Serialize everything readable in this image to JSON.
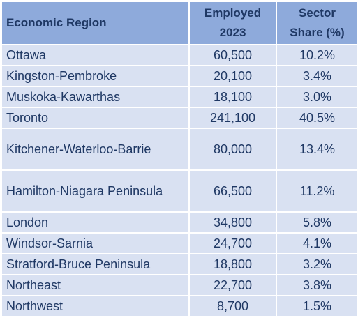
{
  "table": {
    "headers": {
      "region": "Economic Region",
      "employed_line1": "Employed",
      "employed_line2": "2023",
      "share_line1": "Sector",
      "share_line2": "Share (%)"
    },
    "rows": [
      {
        "region": "Ottawa",
        "employed": "60,500",
        "share": "10.2%"
      },
      {
        "region": "Kingston-Pembroke",
        "employed": "20,100",
        "share": "3.4%"
      },
      {
        "region": "Muskoka-Kawarthas",
        "employed": "18,100",
        "share": "3.0%"
      },
      {
        "region": "Toronto",
        "employed": "241,100",
        "share": "40.5%"
      },
      {
        "region": "Kitchener-Waterloo-Barrie",
        "employed": "80,000",
        "share": "13.4%"
      },
      {
        "region": "Hamilton-Niagara Peninsula",
        "employed": "66,500",
        "share": "11.2%"
      },
      {
        "region": "London",
        "employed": "34,800",
        "share": "5.8%"
      },
      {
        "region": "Windsor-Sarnia",
        "employed": "24,700",
        "share": "4.1%"
      },
      {
        "region": "Stratford-Bruce Peninsula",
        "employed": "18,800",
        "share": "3.2%"
      },
      {
        "region": "Northeast",
        "employed": "22,700",
        "share": "3.8%"
      },
      {
        "region": "Northwest",
        "employed": "8,700",
        "share": "1.5%"
      }
    ]
  },
  "colors": {
    "header_bg": "#8eaadb",
    "row_bg": "#d9e1f2",
    "text": "#1f3864"
  }
}
